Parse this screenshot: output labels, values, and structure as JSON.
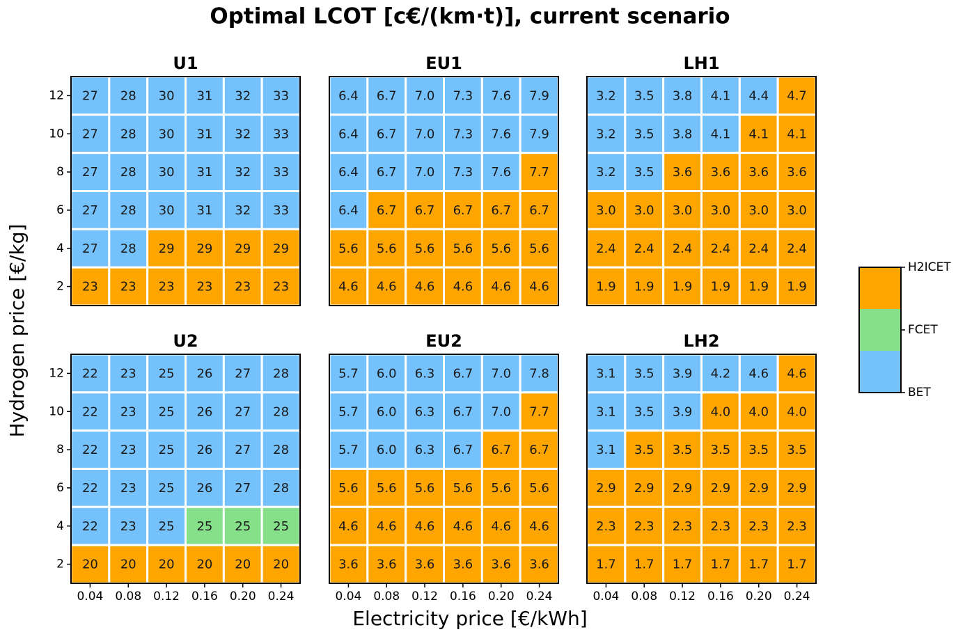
{
  "title": "Optimal LCOT [c€/(km·t)], current scenario",
  "xlabel": "Electricity price [€/kWh]",
  "ylabel": "Hydrogen price [€/kg]",
  "legend": {
    "labels": [
      "BET",
      "FCET",
      "H2ICET"
    ],
    "colors": [
      "#74c1fc",
      "#86e08a",
      "#ffa500"
    ]
  },
  "chart_data": [
    {
      "type": "heatmap",
      "title": "U1",
      "xcategories": [
        "0.04",
        "0.08",
        "0.12",
        "0.16",
        "0.20",
        "0.24"
      ],
      "ycategories": [
        "12",
        "10",
        "8",
        "6",
        "4",
        "2"
      ],
      "values": [
        [
          27,
          28,
          30,
          31,
          32,
          33
        ],
        [
          27,
          28,
          30,
          31,
          32,
          33
        ],
        [
          27,
          28,
          30,
          31,
          32,
          33
        ],
        [
          27,
          28,
          30,
          31,
          32,
          33
        ],
        [
          27,
          28,
          29,
          29,
          29,
          29
        ],
        [
          23,
          23,
          23,
          23,
          23,
          23
        ]
      ],
      "tech": [
        [
          0,
          0,
          0,
          0,
          0,
          0
        ],
        [
          0,
          0,
          0,
          0,
          0,
          0
        ],
        [
          0,
          0,
          0,
          0,
          0,
          0
        ],
        [
          0,
          0,
          0,
          0,
          0,
          0
        ],
        [
          0,
          0,
          2,
          2,
          2,
          2
        ],
        [
          2,
          2,
          2,
          2,
          2,
          2
        ]
      ]
    },
    {
      "type": "heatmap",
      "title": "EU1",
      "xcategories": [
        "0.04",
        "0.08",
        "0.12",
        "0.16",
        "0.20",
        "0.24"
      ],
      "ycategories": [
        "12",
        "10",
        "8",
        "6",
        "4",
        "2"
      ],
      "values": [
        [
          6.4,
          6.7,
          7.0,
          7.3,
          7.6,
          7.9
        ],
        [
          6.4,
          6.7,
          7.0,
          7.3,
          7.6,
          7.9
        ],
        [
          6.4,
          6.7,
          7.0,
          7.3,
          7.6,
          7.7
        ],
        [
          6.4,
          6.7,
          6.7,
          6.7,
          6.7,
          6.7
        ],
        [
          5.6,
          5.6,
          5.6,
          5.6,
          5.6,
          5.6
        ],
        [
          4.6,
          4.6,
          4.6,
          4.6,
          4.6,
          4.6
        ]
      ],
      "value_labels": [
        [
          "6.4",
          "6.7",
          "7.0",
          "7.3",
          "7.6",
          "7.9"
        ],
        [
          "6.4",
          "6.7",
          "7.0",
          "7.3",
          "7.6",
          "7.9"
        ],
        [
          "6.4",
          "6.7",
          "7.0",
          "7.3",
          "7.6",
          "7.7"
        ],
        [
          "6.4",
          "6.7",
          "6.7",
          "6.7",
          "6.7",
          "6.7"
        ],
        [
          "5.6",
          "5.6",
          "5.6",
          "5.6",
          "5.6",
          "5.6"
        ],
        [
          "4.6",
          "4.6",
          "4.6",
          "4.6",
          "4.6",
          "4.6"
        ]
      ],
      "tech": [
        [
          0,
          0,
          0,
          0,
          0,
          0
        ],
        [
          0,
          0,
          0,
          0,
          0,
          0
        ],
        [
          0,
          0,
          0,
          0,
          0,
          2
        ],
        [
          0,
          2,
          2,
          2,
          2,
          2
        ],
        [
          2,
          2,
          2,
          2,
          2,
          2
        ],
        [
          2,
          2,
          2,
          2,
          2,
          2
        ]
      ]
    },
    {
      "type": "heatmap",
      "title": "LH1",
      "xcategories": [
        "0.04",
        "0.08",
        "0.12",
        "0.16",
        "0.20",
        "0.24"
      ],
      "ycategories": [
        "12",
        "10",
        "8",
        "6",
        "4",
        "2"
      ],
      "values": [
        [
          3.2,
          3.5,
          3.8,
          4.1,
          4.4,
          4.7
        ],
        [
          3.2,
          3.5,
          3.8,
          4.1,
          4.1,
          4.1
        ],
        [
          3.2,
          3.5,
          3.6,
          3.6,
          3.6,
          3.6
        ],
        [
          3.0,
          3.0,
          3.0,
          3.0,
          3.0,
          3.0
        ],
        [
          2.4,
          2.4,
          2.4,
          2.4,
          2.4,
          2.4
        ],
        [
          1.9,
          1.9,
          1.9,
          1.9,
          1.9,
          1.9
        ]
      ],
      "value_labels": [
        [
          "3.2",
          "3.5",
          "3.8",
          "4.1",
          "4.4",
          "4.7"
        ],
        [
          "3.2",
          "3.5",
          "3.8",
          "4.1",
          "4.1",
          "4.1"
        ],
        [
          "3.2",
          "3.5",
          "3.6",
          "3.6",
          "3.6",
          "3.6"
        ],
        [
          "3.0",
          "3.0",
          "3.0",
          "3.0",
          "3.0",
          "3.0"
        ],
        [
          "2.4",
          "2.4",
          "2.4",
          "2.4",
          "2.4",
          "2.4"
        ],
        [
          "1.9",
          "1.9",
          "1.9",
          "1.9",
          "1.9",
          "1.9"
        ]
      ],
      "tech": [
        [
          0,
          0,
          0,
          0,
          0,
          2
        ],
        [
          0,
          0,
          0,
          0,
          2,
          2
        ],
        [
          0,
          0,
          2,
          2,
          2,
          2
        ],
        [
          2,
          2,
          2,
          2,
          2,
          2
        ],
        [
          2,
          2,
          2,
          2,
          2,
          2
        ],
        [
          2,
          2,
          2,
          2,
          2,
          2
        ]
      ]
    },
    {
      "type": "heatmap",
      "title": "U2",
      "xcategories": [
        "0.04",
        "0.08",
        "0.12",
        "0.16",
        "0.20",
        "0.24"
      ],
      "ycategories": [
        "12",
        "10",
        "8",
        "6",
        "4",
        "2"
      ],
      "values": [
        [
          22,
          23,
          25,
          26,
          27,
          28
        ],
        [
          22,
          23,
          25,
          26,
          27,
          28
        ],
        [
          22,
          23,
          25,
          26,
          27,
          28
        ],
        [
          22,
          23,
          25,
          26,
          27,
          28
        ],
        [
          22,
          23,
          25,
          25,
          25,
          25
        ],
        [
          20,
          20,
          20,
          20,
          20,
          20
        ]
      ],
      "tech": [
        [
          0,
          0,
          0,
          0,
          0,
          0
        ],
        [
          0,
          0,
          0,
          0,
          0,
          0
        ],
        [
          0,
          0,
          0,
          0,
          0,
          0
        ],
        [
          0,
          0,
          0,
          0,
          0,
          0
        ],
        [
          0,
          0,
          0,
          1,
          1,
          1
        ],
        [
          2,
          2,
          2,
          2,
          2,
          2
        ]
      ]
    },
    {
      "type": "heatmap",
      "title": "EU2",
      "xcategories": [
        "0.04",
        "0.08",
        "0.12",
        "0.16",
        "0.20",
        "0.24"
      ],
      "ycategories": [
        "12",
        "10",
        "8",
        "6",
        "4",
        "2"
      ],
      "values": [
        [
          5.7,
          6.0,
          6.3,
          6.7,
          7.0,
          7.8
        ],
        [
          5.7,
          6.0,
          6.3,
          6.7,
          7.0,
          7.7
        ],
        [
          5.7,
          6.0,
          6.3,
          6.7,
          6.7,
          6.7
        ],
        [
          5.6,
          5.6,
          5.6,
          5.6,
          5.6,
          5.6
        ],
        [
          4.6,
          4.6,
          4.6,
          4.6,
          4.6,
          4.6
        ],
        [
          3.6,
          3.6,
          3.6,
          3.6,
          3.6,
          3.6
        ]
      ],
      "value_labels": [
        [
          "5.7",
          "6.0",
          "6.3",
          "6.7",
          "7.0",
          "7.8"
        ],
        [
          "5.7",
          "6.0",
          "6.3",
          "6.7",
          "7.0",
          "7.7"
        ],
        [
          "5.7",
          "6.0",
          "6.3",
          "6.7",
          "6.7",
          "6.7"
        ],
        [
          "5.6",
          "5.6",
          "5.6",
          "5.6",
          "5.6",
          "5.6"
        ],
        [
          "4.6",
          "4.6",
          "4.6",
          "4.6",
          "4.6",
          "4.6"
        ],
        [
          "3.6",
          "3.6",
          "3.6",
          "3.6",
          "3.6",
          "3.6"
        ]
      ],
      "tech": [
        [
          0,
          0,
          0,
          0,
          0,
          0
        ],
        [
          0,
          0,
          0,
          0,
          0,
          2
        ],
        [
          0,
          0,
          0,
          0,
          2,
          2
        ],
        [
          2,
          2,
          2,
          2,
          2,
          2
        ],
        [
          2,
          2,
          2,
          2,
          2,
          2
        ],
        [
          2,
          2,
          2,
          2,
          2,
          2
        ]
      ]
    },
    {
      "type": "heatmap",
      "title": "LH2",
      "xcategories": [
        "0.04",
        "0.08",
        "0.12",
        "0.16",
        "0.20",
        "0.24"
      ],
      "ycategories": [
        "12",
        "10",
        "8",
        "6",
        "4",
        "2"
      ],
      "values": [
        [
          3.1,
          3.5,
          3.9,
          4.2,
          4.6,
          4.6
        ],
        [
          3.1,
          3.5,
          3.9,
          4.0,
          4.0,
          4.0
        ],
        [
          3.1,
          3.5,
          3.5,
          3.5,
          3.5,
          3.5
        ],
        [
          2.9,
          2.9,
          2.9,
          2.9,
          2.9,
          2.9
        ],
        [
          2.3,
          2.3,
          2.3,
          2.3,
          2.3,
          2.3
        ],
        [
          1.7,
          1.7,
          1.7,
          1.7,
          1.7,
          1.7
        ]
      ],
      "value_labels": [
        [
          "3.1",
          "3.5",
          "3.9",
          "4.2",
          "4.6",
          "4.6"
        ],
        [
          "3.1",
          "3.5",
          "3.9",
          "4.0",
          "4.0",
          "4.0"
        ],
        [
          "3.1",
          "3.5",
          "3.5",
          "3.5",
          "3.5",
          "3.5"
        ],
        [
          "2.9",
          "2.9",
          "2.9",
          "2.9",
          "2.9",
          "2.9"
        ],
        [
          "2.3",
          "2.3",
          "2.3",
          "2.3",
          "2.3",
          "2.3"
        ],
        [
          "1.7",
          "1.7",
          "1.7",
          "1.7",
          "1.7",
          "1.7"
        ]
      ],
      "tech": [
        [
          0,
          0,
          0,
          0,
          0,
          2
        ],
        [
          0,
          0,
          0,
          2,
          2,
          2
        ],
        [
          0,
          2,
          2,
          2,
          2,
          2
        ],
        [
          2,
          2,
          2,
          2,
          2,
          2
        ],
        [
          2,
          2,
          2,
          2,
          2,
          2
        ],
        [
          2,
          2,
          2,
          2,
          2,
          2
        ]
      ]
    }
  ]
}
